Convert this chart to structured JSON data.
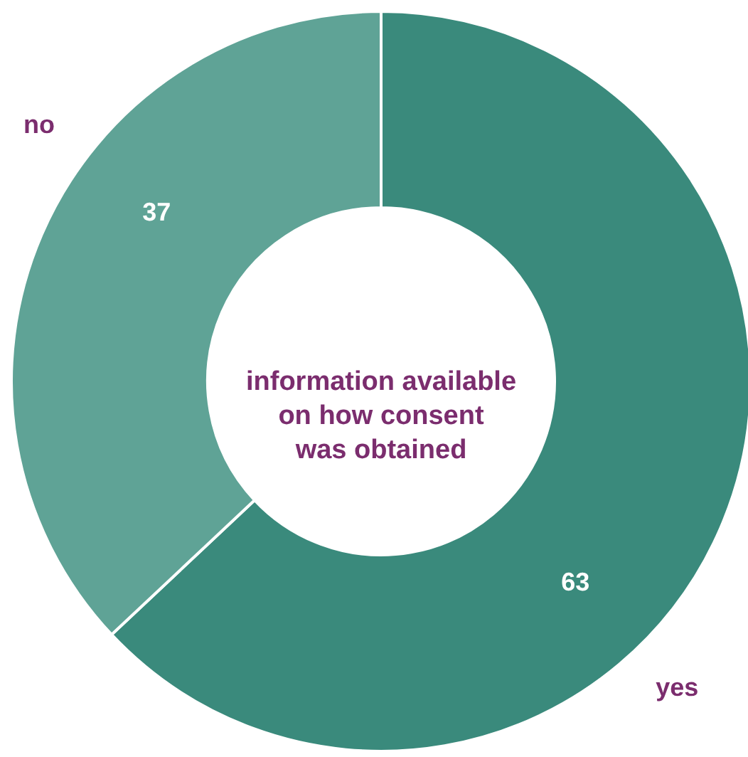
{
  "chart_data": {
    "type": "donut",
    "categories": [
      "yes",
      "no"
    ],
    "values": [
      63,
      37
    ],
    "colors": [
      "#3a8a7c",
      "#5fa396"
    ],
    "data_labels": true,
    "annotations": [
      "information available\non how consent\nwas obtained"
    ]
  }
}
